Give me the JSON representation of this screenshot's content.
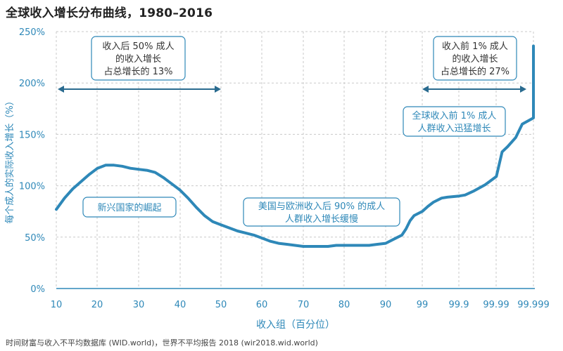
{
  "chart_data": {
    "type": "line",
    "title": "全球收入增长分布曲线，1980–2016",
    "xlabel": "收入组（百分位）",
    "ylabel": "每个成人的实际收入增长（%）",
    "source": "时间财富与收入不平均数据库 (WID.world)，世界不平均报告 2018 (wir2018.wid.world)",
    "x_ticks": [
      "10",
      "20",
      "30",
      "40",
      "50",
      "60",
      "70",
      "80",
      "90",
      "99",
      "99.9",
      "99.99",
      "99.999"
    ],
    "y_ticks": [
      "0%",
      "50%",
      "100%",
      "150%",
      "200%",
      "250%"
    ],
    "ylim": [
      0,
      250
    ],
    "grid": true,
    "series": [
      {
        "x": [
          10,
          12,
          14,
          16,
          18,
          20,
          22,
          24,
          26,
          28,
          30,
          32,
          34,
          36,
          38,
          40,
          42,
          44,
          46,
          48,
          50,
          52,
          54,
          56,
          58,
          60,
          62,
          64,
          66,
          68,
          70,
          72,
          74,
          76,
          78,
          80,
          82,
          84,
          86,
          88,
          90,
          92,
          93,
          94,
          95,
          96,
          97,
          98,
          99,
          99.3,
          99.5,
          99.7,
          99.8,
          99.9,
          99.93,
          99.96,
          99.98,
          99.99,
          99.993,
          99.995,
          99.997,
          99.998,
          99.999
        ],
        "y": [
          77,
          88,
          97,
          104,
          111,
          117,
          120,
          120,
          119,
          117,
          116,
          115,
          113,
          108,
          102,
          96,
          88,
          79,
          71,
          65,
          62,
          59,
          56,
          54,
          52,
          49,
          46,
          44,
          43,
          42,
          41,
          41,
          41,
          41,
          42,
          42,
          42,
          42,
          42,
          43,
          44,
          48,
          50,
          52,
          58,
          66,
          71,
          73,
          75,
          80,
          84,
          88,
          89,
          90,
          91,
          95,
          101,
          109,
          133,
          138,
          147,
          160,
          166
        ]
      }
    ],
    "tail_value": 236,
    "annotations": {
      "bottom50": [
        "收入后 50% 成人",
        "的收入增长",
        "占总增长的 13%"
      ],
      "top1": [
        "收入前 1% 成人",
        "的收入增长",
        "占总增长的 27%"
      ],
      "top1_rise": [
        "全球收入前 1% 成人",
        "人群收入迅猛增长"
      ],
      "emerging": "新兴国家的崛起",
      "middle": [
        "美国与欧洲收入后 90% 的成人",
        "人群收入增长缓慢"
      ]
    }
  }
}
